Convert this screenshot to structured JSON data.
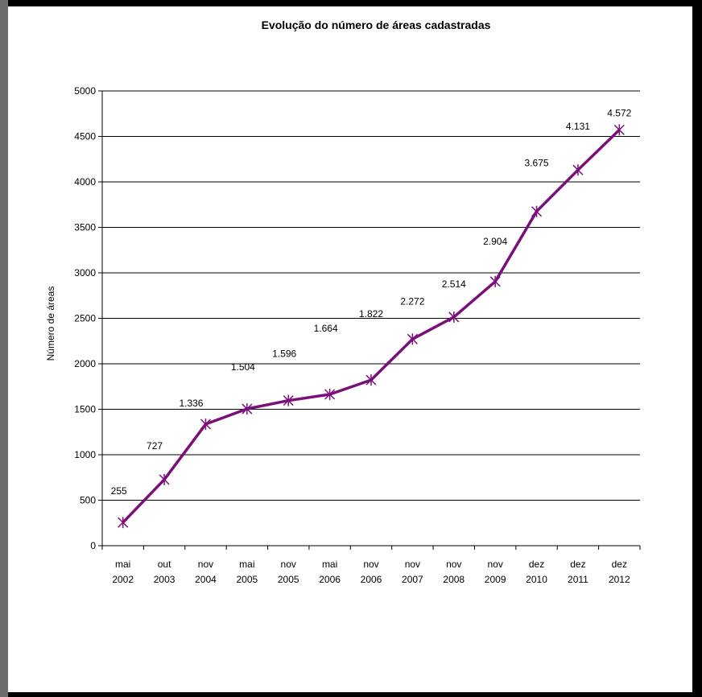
{
  "chart_data": {
    "type": "line",
    "title": "Evolução do número de áreas cadastradas",
    "ylabel": "Número de áreas",
    "xlabel": "",
    "ylim": [
      0,
      5000
    ],
    "yticks": [
      0,
      500,
      1000,
      1500,
      2000,
      2500,
      3000,
      3500,
      4000,
      4500,
      5000
    ],
    "grid": true,
    "legend": "none",
    "categories": [
      [
        "mai",
        "2002"
      ],
      [
        "out",
        "2003"
      ],
      [
        "nov",
        "2004"
      ],
      [
        "mai",
        "2005"
      ],
      [
        "nov",
        "2005"
      ],
      [
        "mai",
        "2006"
      ],
      [
        "nov",
        "2006"
      ],
      [
        "nov",
        "2007"
      ],
      [
        "nov",
        "2008"
      ],
      [
        "nov",
        "2009"
      ],
      [
        "dez",
        "2010"
      ],
      [
        "dez",
        "2011"
      ],
      [
        "dez",
        "2012"
      ]
    ],
    "series": [
      {
        "values": [
          255,
          727,
          1336,
          1504,
          1596,
          1664,
          1822,
          2272,
          2514,
          2904,
          3675,
          4131,
          4572
        ],
        "data_labels": [
          "255",
          "727",
          "1.336",
          "1.504",
          "1.596",
          "1.664",
          "1.822",
          "2.272",
          "2.514",
          "2.904",
          "3.675",
          "4.131",
          "4.572"
        ],
        "color": "#7a0f7a"
      }
    ]
  }
}
